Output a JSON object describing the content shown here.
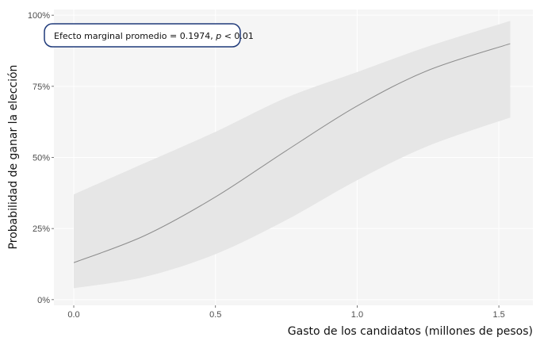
{
  "chart_data": {
    "type": "line",
    "title": "",
    "xlabel": "Gasto de los candidatos (millones de pesos)",
    "ylabel": "Probabilidad de ganar la elección",
    "xlim": [
      -0.07,
      1.62
    ],
    "ylim": [
      -0.02,
      1.02
    ],
    "xticks": [
      0.0,
      0.5,
      1.0,
      1.5
    ],
    "xtick_labels": [
      "0.0",
      "0.5",
      "1.0",
      "1.5"
    ],
    "yticks": [
      0,
      0.25,
      0.5,
      0.75,
      1.0
    ],
    "ytick_labels": [
      "0%",
      "25%",
      "50%",
      "75%",
      "100%"
    ],
    "grid": true,
    "x": [
      0,
      0.25,
      0.5,
      0.75,
      1.0,
      1.25,
      1.54
    ],
    "series": [
      {
        "values": [
          0.13,
          0.225,
          0.361,
          0.524,
          0.681,
          0.806,
          0.9
        ],
        "lower": [
          0.04,
          0.08,
          0.16,
          0.28,
          0.42,
          0.54,
          0.64
        ],
        "upper": [
          0.37,
          0.48,
          0.59,
          0.71,
          0.8,
          0.89,
          0.98
        ]
      }
    ],
    "annotation": {
      "prefix": "Efecto marginal promedio = 0.1974, ",
      "italic": "p",
      "suffix": " < 0.01"
    },
    "colors": {
      "panel": "#f5f5f5",
      "band": "#e6e6e6",
      "line": "#8c8c8c",
      "annotation_border": "#1f3a7a"
    }
  }
}
